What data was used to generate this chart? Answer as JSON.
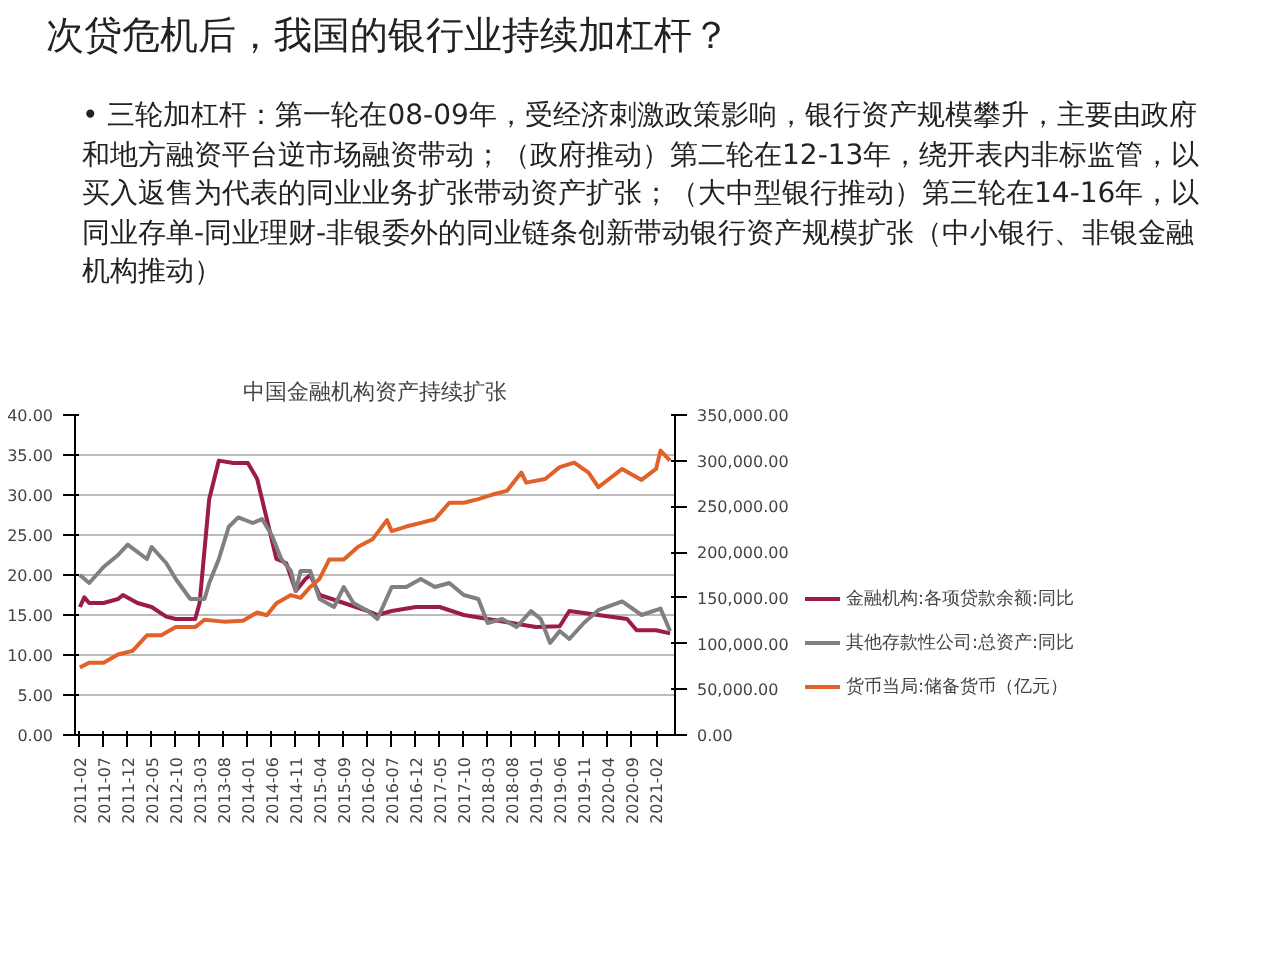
{
  "chart_data": {
    "type": "line",
    "title": "中国金融机构资产持续扩张",
    "annotations": [
      "次贷危机后，我国的银行业持续加杠杆？",
      "• 三轮加杠杆：第一轮在08-09年，受经济刺激政策影响，银行资产规模攀升，主要由政府和地方融资平台逆市场融资带动；（政府推动）第二轮在12-13年，绕开表内非标监管，以买入返售为代表的同业业务扩张带动资产扩张；（大中型银行推动）第三轮在14-16年，以同业存单-同业理财-非银委外的同业链条创新带动银行资产规模扩张（中小银行、非银金融机构推动）"
    ],
    "xlim": [
      "2011-01",
      "2021-06"
    ],
    "xticks": [
      "2011-02",
      "2011-07",
      "2011-12",
      "2012-05",
      "2012-10",
      "2013-03",
      "2013-08",
      "2014-01",
      "2014-06",
      "2014-11",
      "2015-04",
      "2015-09",
      "2016-02",
      "2016-07",
      "2016-12",
      "2017-05",
      "2017-10",
      "2018-03",
      "2018-08",
      "2019-01",
      "2019-06",
      "2019-11",
      "2020-04",
      "2020-09",
      "2021-02"
    ],
    "ylim": [
      0,
      40
    ],
    "yticks": [
      {
        "value": 0,
        "label": "0.00"
      },
      {
        "value": 5,
        "label": "5.00"
      },
      {
        "value": 10,
        "label": "10.00"
      },
      {
        "value": 15,
        "label": "15.00"
      },
      {
        "value": 20,
        "label": "20.00"
      },
      {
        "value": 25,
        "label": "25.00"
      },
      {
        "value": 30,
        "label": "30.00"
      },
      {
        "value": 35,
        "label": "35.00"
      },
      {
        "value": 40,
        "label": "40.00"
      }
    ],
    "y2lim": [
      0,
      350000
    ],
    "y2ticks": [
      {
        "value": 0,
        "label": "0.00"
      },
      {
        "value": 50000,
        "label": "50,000.00"
      },
      {
        "value": 100000,
        "label": "100,000.00"
      },
      {
        "value": 150000,
        "label": "150,000.00"
      },
      {
        "value": 200000,
        "label": "200,000.00"
      },
      {
        "value": 250000,
        "label": "250,000.00"
      },
      {
        "value": 300000,
        "label": "300,000.00"
      },
      {
        "value": 350000,
        "label": "350,000.00"
      }
    ],
    "grid": "y",
    "legend": "right",
    "line_style": "solid",
    "series": [
      {
        "name": "金融机构:各项贷款余额:同比",
        "color": "#9b1b4a",
        "x": [
          "2011-02",
          "2011-03",
          "2011-04",
          "2011-07",
          "2011-10",
          "2011-11",
          "2012-02",
          "2012-05",
          "2012-08",
          "2012-10",
          "2013-02",
          "2013-03",
          "2013-05",
          "2013-07",
          "2013-10",
          "2014-01",
          "2014-03",
          "2014-05",
          "2014-07",
          "2014-09",
          "2014-11",
          "2015-01",
          "2015-02",
          "2015-04",
          "2015-09",
          "2016-02",
          "2016-04",
          "2016-07",
          "2016-12",
          "2017-05",
          "2017-10",
          "2018-03",
          "2018-08",
          "2019-01",
          "2019-06",
          "2019-08",
          "2020-02",
          "2020-08",
          "2020-10",
          "2021-02",
          "2021-05"
        ],
        "values": [
          16,
          17.2,
          16.5,
          16.5,
          17,
          17.5,
          16.5,
          16,
          14.8,
          14.5,
          14.5,
          16.5,
          29.5,
          34.3,
          34,
          34,
          32,
          27,
          22,
          21.5,
          18,
          19.5,
          20,
          17.5,
          16.5,
          15.5,
          15,
          15.5,
          16,
          16,
          15,
          14.5,
          14,
          13.5,
          13.6,
          15.5,
          15,
          14.5,
          13.1,
          13.1,
          12.7
        ]
      },
      {
        "name": "其他存款性公司:总资产:同比",
        "color": "#808080",
        "x": [
          "2011-02",
          "2011-04",
          "2011-07",
          "2011-10",
          "2011-12",
          "2012-04",
          "2012-05",
          "2012-08",
          "2012-10",
          "2013-01",
          "2013-04",
          "2013-05",
          "2013-07",
          "2013-09",
          "2013-11",
          "2014-02",
          "2014-04",
          "2014-06",
          "2014-08",
          "2014-10",
          "2014-11",
          "2014-12",
          "2015-02",
          "2015-04",
          "2015-07",
          "2015-09",
          "2015-11",
          "2016-02",
          "2016-04",
          "2016-07",
          "2016-10",
          "2017-01",
          "2017-04",
          "2017-07",
          "2017-10",
          "2018-01",
          "2018-03",
          "2018-06",
          "2018-09",
          "2018-12",
          "2019-02",
          "2019-04",
          "2019-06",
          "2019-08",
          "2019-11",
          "2020-02",
          "2020-07",
          "2020-11",
          "2021-03",
          "2021-05"
        ],
        "values": [
          20,
          19,
          21,
          22.5,
          23.8,
          22,
          23.5,
          21.5,
          19.5,
          17,
          17,
          19,
          22,
          26,
          27.2,
          26.5,
          27,
          25,
          22,
          20.5,
          18,
          20.5,
          20.5,
          17,
          16,
          18.5,
          16.5,
          15.5,
          14.5,
          18.5,
          18.5,
          19.5,
          18.5,
          19,
          17.5,
          17,
          14,
          14.5,
          13.5,
          15.5,
          14.5,
          11.5,
          13,
          12,
          14,
          15.6,
          16.7,
          15,
          15.8,
          13
        ]
      },
      {
        "name": "货币当局:储备货币（亿元）",
        "color": "#e0622a",
        "axis": "y2",
        "x": [
          "2011-02",
          "2011-04",
          "2011-07",
          "2011-10",
          "2012-01",
          "2012-04",
          "2012-07",
          "2012-10",
          "2013-02",
          "2013-04",
          "2013-08",
          "2013-12",
          "2014-03",
          "2014-05",
          "2014-07",
          "2014-10",
          "2014-12",
          "2015-02",
          "2015-04",
          "2015-06",
          "2015-09",
          "2015-12",
          "2016-03",
          "2016-06",
          "2016-07",
          "2016-10",
          "2017-01",
          "2017-04",
          "2017-07",
          "2017-10",
          "2018-01",
          "2018-04",
          "2018-07",
          "2018-10",
          "2018-11",
          "2019-03",
          "2019-06",
          "2019-09",
          "2019-12",
          "2020-02",
          "2020-07",
          "2020-11",
          "2021-02",
          "2021-03",
          "2021-05"
        ],
        "values": [
          74000,
          79000,
          79000,
          88000,
          92000,
          109000,
          109000,
          118000,
          118000,
          126000,
          124000,
          125000,
          134000,
          131000,
          144000,
          153000,
          150000,
          162000,
          171000,
          192000,
          192000,
          206000,
          214000,
          235000,
          223000,
          228000,
          232000,
          236000,
          254000,
          254000,
          258000,
          263000,
          267000,
          287000,
          276000,
          280000,
          293000,
          298000,
          287000,
          271000,
          291000,
          279000,
          291000,
          311000,
          300000
        ]
      }
    ]
  }
}
